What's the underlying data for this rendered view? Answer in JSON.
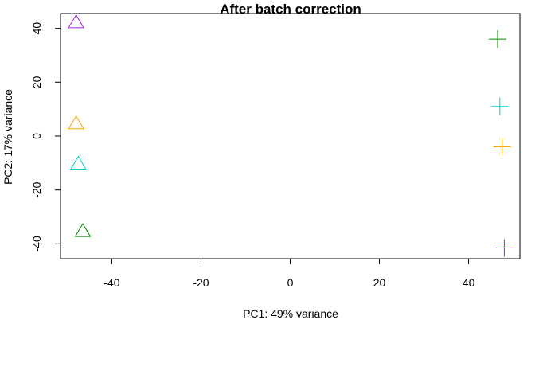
{
  "chart_data": {
    "type": "scatter",
    "title": "After batch correction",
    "xlabel": "PC1: 49% variance",
    "ylabel": "PC2: 17% variance",
    "xlim": [
      -51.5,
      51.5
    ],
    "ylim": [
      -45.5,
      45.5
    ],
    "xticks": [
      -40,
      -20,
      0,
      20,
      40
    ],
    "yticks": [
      -40,
      -20,
      0,
      20,
      40
    ],
    "xtick_labels": [
      "-40",
      "-20",
      "0",
      "20",
      "40"
    ],
    "ytick_labels": [
      "-40",
      "-20",
      "0",
      "20",
      "40"
    ],
    "grid": false,
    "legend": "none",
    "points": [
      {
        "x": -48.0,
        "y": 42.0,
        "shape": "triangle",
        "color": "#a020f0"
      },
      {
        "x": -48.0,
        "y": 4.5,
        "shape": "triangle",
        "color": "#ffa500"
      },
      {
        "x": -47.5,
        "y": -10.5,
        "shape": "triangle",
        "color": "#00cdcd"
      },
      {
        "x": -46.5,
        "y": -35.5,
        "shape": "triangle",
        "color": "#008b00"
      },
      {
        "x": 46.5,
        "y": 36.0,
        "shape": "plus",
        "color": "#008b00"
      },
      {
        "x": 47.0,
        "y": 11.0,
        "shape": "plus",
        "color": "#00cdcd"
      },
      {
        "x": 47.5,
        "y": -4.0,
        "shape": "plus",
        "color": "#ffa500"
      },
      {
        "x": 48.0,
        "y": -41.5,
        "shape": "plus",
        "color": "#a020f0"
      }
    ]
  }
}
